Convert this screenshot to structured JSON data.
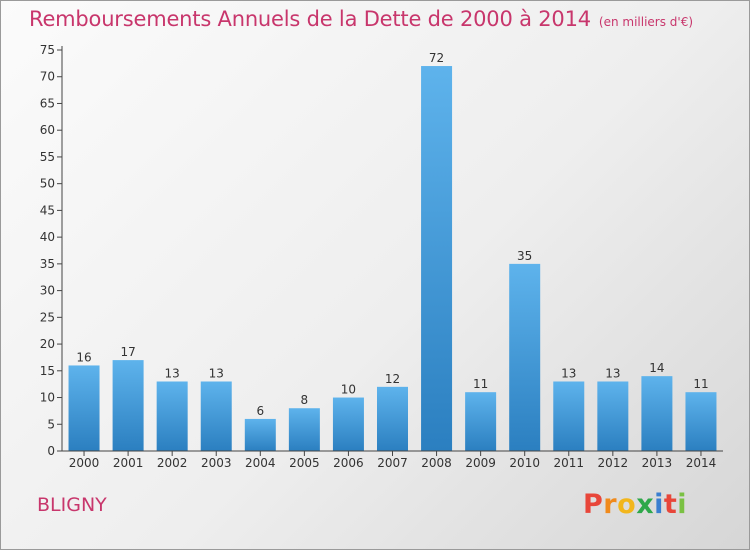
{
  "header": {
    "title": "Remboursements Annuels de la Dette de 2000 à 2014",
    "unit": "(en milliers d'€)"
  },
  "footer": {
    "commune": "BLIGNY",
    "brand": "Proxiti"
  },
  "colors": {
    "title": "#c8366c",
    "bar_light": "#5eb3ec",
    "bar_dark": "#2b7fc0",
    "logo_letters": [
      "#e8463a",
      "#f08a1c",
      "#f2b61c",
      "#2ea84a",
      "#3a7fd0",
      "#e8463a",
      "#7ac143"
    ]
  },
  "chart_data": {
    "type": "bar",
    "categories": [
      "2000",
      "2001",
      "2002",
      "2003",
      "2004",
      "2005",
      "2006",
      "2007",
      "2008",
      "2009",
      "2010",
      "2011",
      "2012",
      "2013",
      "2014"
    ],
    "values": [
      16,
      17,
      13,
      13,
      6,
      8,
      10,
      12,
      72,
      11,
      35,
      13,
      13,
      14,
      11
    ],
    "title": "Remboursements Annuels de la Dette de 2000 à 2014",
    "xlabel": "",
    "ylabel": "",
    "ylim": [
      0,
      75
    ],
    "yticks": [
      0,
      5,
      10,
      15,
      20,
      25,
      30,
      35,
      40,
      45,
      50,
      55,
      60,
      65,
      70,
      75
    ],
    "grid": false,
    "data_labels": true
  }
}
